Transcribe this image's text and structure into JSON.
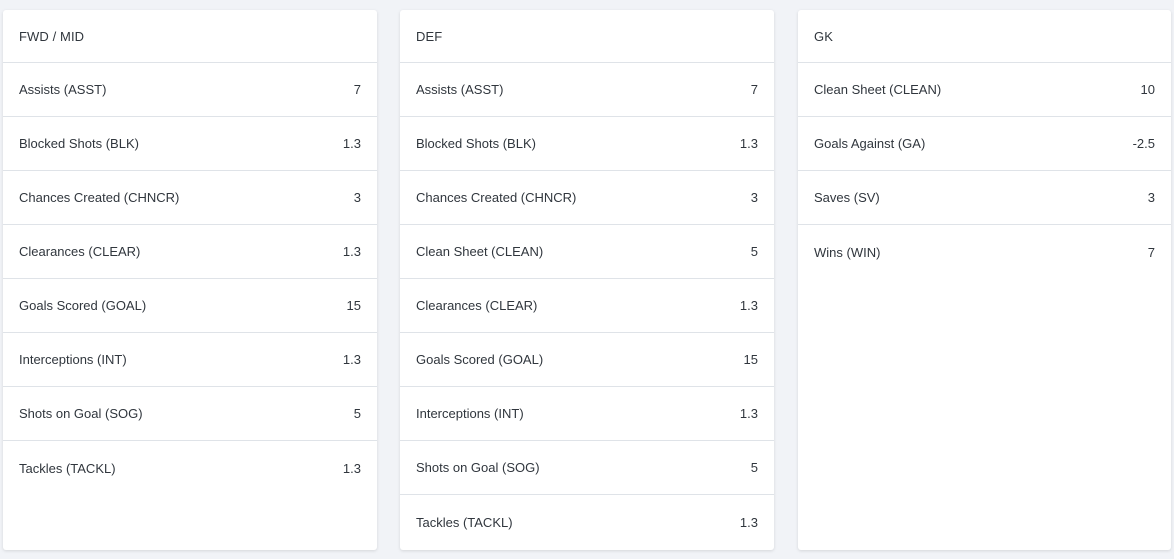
{
  "panels": [
    {
      "title": "FWD / MID",
      "rows": [
        {
          "label": "Assists (ASST)",
          "value": "7"
        },
        {
          "label": "Blocked Shots (BLK)",
          "value": "1.3"
        },
        {
          "label": "Chances Created (CHNCR)",
          "value": "3"
        },
        {
          "label": "Clearances (CLEAR)",
          "value": "1.3"
        },
        {
          "label": "Goals Scored (GOAL)",
          "value": "15"
        },
        {
          "label": "Interceptions (INT)",
          "value": "1.3"
        },
        {
          "label": "Shots on Goal (SOG)",
          "value": "5"
        },
        {
          "label": "Tackles (TACKL)",
          "value": "1.3"
        }
      ]
    },
    {
      "title": "DEF",
      "rows": [
        {
          "label": "Assists (ASST)",
          "value": "7"
        },
        {
          "label": "Blocked Shots (BLK)",
          "value": "1.3"
        },
        {
          "label": "Chances Created (CHNCR)",
          "value": "3"
        },
        {
          "label": "Clean Sheet (CLEAN)",
          "value": "5"
        },
        {
          "label": "Clearances (CLEAR)",
          "value": "1.3"
        },
        {
          "label": "Goals Scored (GOAL)",
          "value": "15"
        },
        {
          "label": "Interceptions (INT)",
          "value": "1.3"
        },
        {
          "label": "Shots on Goal (SOG)",
          "value": "5"
        },
        {
          "label": "Tackles (TACKL)",
          "value": "1.3"
        }
      ]
    },
    {
      "title": "GK",
      "rows": [
        {
          "label": "Clean Sheet (CLEAN)",
          "value": "10"
        },
        {
          "label": "Goals Against (GA)",
          "value": "-2.5"
        },
        {
          "label": "Saves (SV)",
          "value": "3"
        },
        {
          "label": "Wins (WIN)",
          "value": "7"
        }
      ]
    }
  ]
}
